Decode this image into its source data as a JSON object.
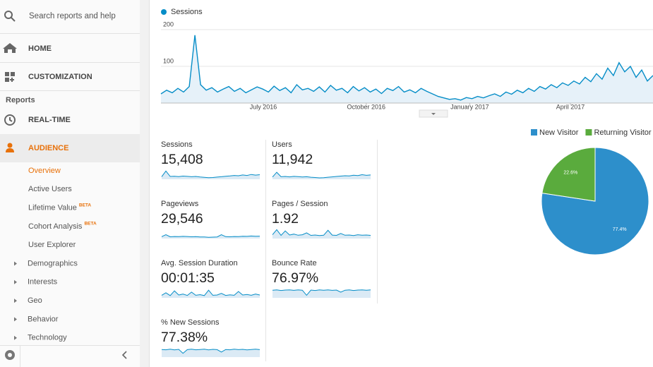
{
  "sidebar": {
    "search": "Search reports and help",
    "nav": [
      "HOME",
      "CUSTOMIZATION"
    ],
    "section": "Reports",
    "reports": [
      "REAL-TIME",
      "AUDIENCE"
    ],
    "audience_pages": [
      {
        "label": "Overview"
      },
      {
        "label": "Active Users"
      },
      {
        "label": "Lifetime Value",
        "badge": "BETA"
      },
      {
        "label": "Cohort Analysis",
        "badge": "BETA"
      },
      {
        "label": "User Explorer"
      }
    ],
    "audience_groups": [
      "Demographics",
      "Interests",
      "Geo",
      "Behavior",
      "Technology"
    ]
  },
  "sessions_chart": {
    "type": "line",
    "series": [
      {
        "name": "Sessions",
        "color": "#058dc7",
        "values": [
          25,
          35,
          28,
          40,
          30,
          45,
          185,
          50,
          35,
          42,
          30,
          38,
          45,
          32,
          40,
          28,
          36,
          44,
          38,
          30,
          46,
          34,
          42,
          28,
          50,
          36,
          40,
          32,
          44,
          30,
          48,
          35,
          40,
          28,
          45,
          33,
          42,
          30,
          38,
          26,
          40,
          34,
          45,
          30,
          36,
          28,
          40,
          32,
          25,
          18,
          14,
          10,
          12,
          8,
          15,
          12,
          18,
          14,
          20,
          25,
          18,
          30,
          24,
          35,
          28,
          40,
          32,
          45,
          38,
          50,
          42,
          55,
          48,
          60,
          52,
          70,
          58,
          80,
          65,
          95,
          75,
          110,
          85,
          100,
          70,
          90,
          60,
          75
        ]
      }
    ],
    "xlim": [
      0,
      87
    ],
    "xticks": [
      {
        "value": 18.1,
        "label": "July 2016"
      },
      {
        "value": 36.3,
        "label": "October 2016"
      },
      {
        "value": 54.6,
        "label": "January 2017"
      },
      {
        "value": 72.4,
        "label": "April 2017"
      }
    ],
    "ylim": [
      0,
      200
    ],
    "yticks": [
      100,
      200
    ],
    "grid": true
  },
  "metrics": [
    {
      "label": "Sessions",
      "value": "15,408",
      "sparkline": {
        "type": "line",
        "color": "#058dc7",
        "ylim": [
          0,
          100
        ],
        "values": [
          20,
          65,
          22,
          24,
          21,
          25,
          23,
          20,
          22,
          18,
          15,
          12,
          14,
          17,
          20,
          24,
          26,
          30,
          28,
          34,
          30,
          38,
          33,
          36
        ]
      }
    },
    {
      "label": "Users",
      "value": "11,942",
      "sparkline": {
        "type": "line",
        "color": "#058dc7",
        "ylim": [
          0,
          100
        ],
        "values": [
          18,
          55,
          20,
          22,
          19,
          23,
          21,
          18,
          20,
          16,
          14,
          11,
          13,
          16,
          19,
          22,
          25,
          28,
          26,
          32,
          29,
          36,
          31,
          34
        ]
      }
    },
    {
      "label": "Pageviews",
      "value": "29,546",
      "sparkline": {
        "type": "line",
        "color": "#058dc7",
        "ylim": [
          0,
          100
        ],
        "values": [
          15,
          30,
          14,
          16,
          15,
          17,
          16,
          14,
          15,
          13,
          12,
          10,
          11,
          13,
          30,
          15,
          14,
          16,
          15,
          18,
          17,
          20,
          18,
          19
        ]
      }
    },
    {
      "label": "Pages / Session",
      "value": "1.92",
      "sparkline": {
        "type": "line",
        "color": "#058dc7",
        "ylim": [
          0,
          100
        ],
        "values": [
          30,
          70,
          25,
          60,
          28,
          35,
          26,
          30,
          45,
          25,
          28,
          24,
          26,
          65,
          27,
          25,
          40,
          26,
          28,
          24,
          30,
          26,
          28,
          25
        ]
      }
    },
    {
      "label": "Avg. Session Duration",
      "value": "00:01:35",
      "sparkline": {
        "type": "line",
        "color": "#058dc7",
        "ylim": [
          0,
          100
        ],
        "values": [
          20,
          40,
          18,
          55,
          22,
          30,
          19,
          45,
          20,
          25,
          18,
          60,
          20,
          22,
          35,
          19,
          24,
          20,
          50,
          22,
          26,
          20,
          30,
          22
        ]
      }
    },
    {
      "label": "Bounce Rate",
      "value": "76.97%",
      "sparkline": {
        "type": "line",
        "color": "#058dc7",
        "ylim": [
          0,
          100
        ],
        "values": [
          60,
          62,
          58,
          61,
          63,
          59,
          62,
          60,
          20,
          61,
          58,
          62,
          60,
          63,
          59,
          61,
          45,
          60,
          62,
          58,
          61,
          63,
          60,
          62
        ]
      }
    },
    {
      "label": "% New Sessions",
      "value": "77.38%",
      "sparkline": {
        "type": "line",
        "color": "#058dc7",
        "ylim": [
          0,
          100
        ],
        "values": [
          60,
          58,
          62,
          57,
          61,
          30,
          59,
          63,
          58,
          60,
          62,
          57,
          61,
          59,
          40,
          60,
          58,
          62,
          59,
          61,
          57,
          60,
          62,
          59
        ]
      }
    }
  ],
  "visitor_pie": {
    "type": "pie",
    "categories": [
      "New Visitor",
      "Returning Visitor"
    ],
    "values": [
      77.4,
      22.6
    ],
    "value_labels": [
      "77.4%",
      "22.6%"
    ],
    "colors": [
      "#2d8fcb",
      "#5aab3d"
    ]
  }
}
